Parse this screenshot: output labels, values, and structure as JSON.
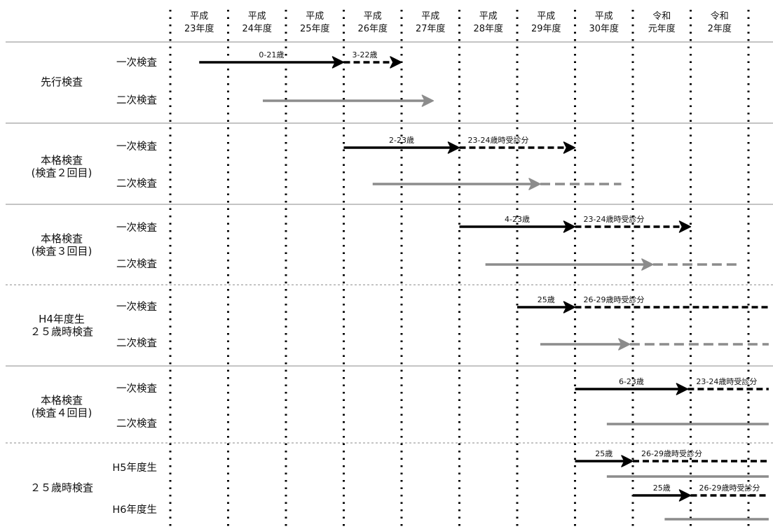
{
  "years": [
    {
      "top": "平成",
      "bottom": "23年度"
    },
    {
      "top": "平成",
      "bottom": "24年度"
    },
    {
      "top": "平成",
      "bottom": "25年度"
    },
    {
      "top": "平成",
      "bottom": "26年度"
    },
    {
      "top": "平成",
      "bottom": "27年度"
    },
    {
      "top": "平成",
      "bottom": "28年度"
    },
    {
      "top": "平成",
      "bottom": "29年度"
    },
    {
      "top": "平成",
      "bottom": "30年度"
    },
    {
      "top": "令和",
      "bottom": "元年度"
    },
    {
      "top": "令和",
      "bottom": "2年度"
    }
  ],
  "groups": [
    {
      "lines": [
        "先行検査"
      ],
      "rows": [
        "一次検査",
        "二次検査"
      ]
    },
    {
      "lines": [
        "本格検査",
        "(検査２回目)"
      ],
      "rows": [
        "一次検査",
        "二次検査"
      ]
    },
    {
      "lines": [
        "本格検査",
        "(検査３回目)"
      ],
      "rows": [
        "一次検査",
        "二次検査"
      ]
    },
    {
      "lines": [
        "H4年度生",
        "２５歳時検査"
      ],
      "rows": [
        "一次検査",
        "二次検査"
      ]
    },
    {
      "lines": [
        "本格検査",
        "(検査４回目)"
      ],
      "rows": [
        "一次検査",
        "二次検査"
      ]
    },
    {
      "lines": [
        "２５歳時検査"
      ],
      "rows": [
        "H5年度生",
        "H6年度生"
      ]
    }
  ],
  "arrows": [
    {
      "row": 0,
      "from": 0.5,
      "to": 3.0,
      "style": "solid",
      "color": "black",
      "head": true,
      "label": "0-21歳"
    },
    {
      "row": 0,
      "from": 3.0,
      "to": 4.0,
      "style": "dashed",
      "color": "black",
      "head": true,
      "label": "3-22歳"
    },
    {
      "row": 1,
      "from": 1.6,
      "to": 4.55,
      "style": "solid",
      "color": "gray",
      "head": true,
      "label": ""
    },
    {
      "row": 2,
      "from": 3.0,
      "to": 5.0,
      "style": "solid",
      "color": "black",
      "head": true,
      "label": "2-23歳"
    },
    {
      "row": 2,
      "from": 5.0,
      "to": 7.0,
      "style": "dashed",
      "color": "black",
      "head": true,
      "label": "23-24歳時受診分"
    },
    {
      "row": 3,
      "from": 3.5,
      "to": 6.4,
      "style": "solid",
      "color": "gray",
      "head": true,
      "label": ""
    },
    {
      "row": 3,
      "from": 6.4,
      "to": 7.8,
      "style": "dashed",
      "color": "gray",
      "head": false,
      "label": ""
    },
    {
      "row": 4,
      "from": 5.0,
      "to": 7.0,
      "style": "solid",
      "color": "black",
      "head": true,
      "label": "4-23歳"
    },
    {
      "row": 4,
      "from": 7.0,
      "to": 9.0,
      "style": "dashed",
      "color": "black",
      "head": true,
      "label": "23-24歳時受診分"
    },
    {
      "row": 5,
      "from": 5.45,
      "to": 8.35,
      "style": "solid",
      "color": "gray",
      "head": true,
      "label": ""
    },
    {
      "row": 5,
      "from": 8.35,
      "to": 9.8,
      "style": "dashed",
      "color": "gray",
      "head": false,
      "label": ""
    },
    {
      "row": 6,
      "from": 6.0,
      "to": 7.0,
      "style": "solid",
      "color": "black",
      "head": true,
      "label": "25歳"
    },
    {
      "row": 6,
      "from": 7.0,
      "to": 10.35,
      "style": "dashed",
      "color": "black",
      "head": false,
      "label": "26-29歳時受診分"
    },
    {
      "row": 7,
      "from": 6.4,
      "to": 7.95,
      "style": "solid",
      "color": "gray",
      "head": true,
      "label": ""
    },
    {
      "row": 7,
      "from": 7.95,
      "to": 10.35,
      "style": "dashed",
      "color": "gray",
      "head": false,
      "label": ""
    },
    {
      "row": 8,
      "from": 7.0,
      "to": 8.95,
      "style": "solid",
      "color": "black",
      "head": true,
      "label": "6-23歳"
    },
    {
      "row": 8,
      "from": 8.95,
      "to": 10.35,
      "style": "dashed",
      "color": "black",
      "head": false,
      "label": "23-24歳時受診分"
    },
    {
      "row": 9,
      "from": 7.55,
      "to": 10.35,
      "style": "solid",
      "color": "gray",
      "head": false,
      "label": ""
    },
    {
      "row": 10,
      "from": 7.0,
      "to": 8.0,
      "style": "solid",
      "color": "black",
      "head": true,
      "label": "25歳"
    },
    {
      "row": 10,
      "from": 8.0,
      "to": 10.35,
      "style": "dashed",
      "color": "black",
      "head": false,
      "label": "26-29歳時受診分"
    },
    {
      "row": 11,
      "from": 7.55,
      "to": 10.35,
      "style": "solid",
      "color": "gray",
      "head": false,
      "label": ""
    },
    {
      "row": 12,
      "from": 8.0,
      "to": 9.0,
      "style": "solid",
      "color": "black",
      "head": true,
      "label": "25歳"
    },
    {
      "row": 12,
      "from": 9.0,
      "to": 10.35,
      "style": "dashed",
      "color": "black",
      "head": false,
      "label": "26-29歳時受診分"
    },
    {
      "row": 13,
      "from": 8.55,
      "to": 10.35,
      "style": "solid",
      "color": "gray",
      "head": false,
      "label": ""
    }
  ],
  "colors": {
    "black": "#000000",
    "gray": "#8c8c8c",
    "separator": "#888888"
  }
}
